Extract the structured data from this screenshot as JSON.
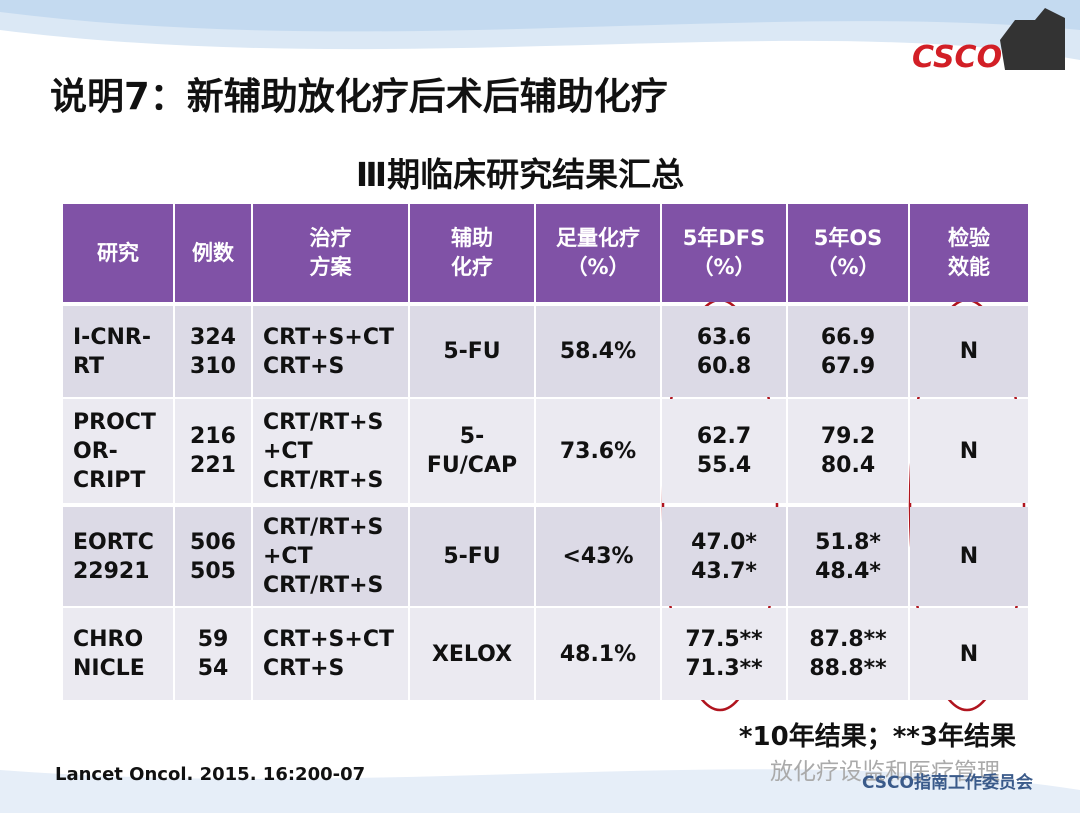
{
  "header": {
    "title": "说明7：新辅助放化疗后术后辅助化疗",
    "logo": "CSCO"
  },
  "subtitle": "Ⅲ期临床研究结果汇总",
  "table": {
    "header": [
      [
        "研究"
      ],
      [
        "例数"
      ],
      [
        "治疗",
        "方案"
      ],
      [
        "辅助",
        "化疗"
      ],
      [
        "足量化疗",
        "（%）"
      ],
      [
        "5年DFS",
        "（%）"
      ],
      [
        "5年OS",
        "（%）"
      ],
      [
        "检验",
        "效能"
      ]
    ],
    "rows": [
      [
        [
          "I-CNR-",
          "RT"
        ],
        [
          "324",
          "310"
        ],
        [
          "CRT+S+CT",
          "CRT+S"
        ],
        [
          "5-FU"
        ],
        [
          "58.4%"
        ],
        [
          "63.6",
          "60.8"
        ],
        [
          "66.9",
          "67.9"
        ],
        [
          "N"
        ]
      ],
      [
        [
          "PROCT",
          "OR-",
          "CRIPT"
        ],
        [
          "216",
          "221"
        ],
        [
          "CRT/RT+S",
          "+CT",
          "CRT/RT+S"
        ],
        [
          "5-",
          "FU/CAP"
        ],
        [
          "73.6%"
        ],
        [
          "62.7",
          "55.4"
        ],
        [
          "79.2",
          "80.4"
        ],
        [
          "N"
        ]
      ],
      [
        [
          "EORTC",
          "22921"
        ],
        [
          "506",
          "505"
        ],
        [
          "CRT/RT+S",
          "+CT",
          "CRT/RT+S"
        ],
        [
          "5-FU"
        ],
        [
          "<43%"
        ],
        [
          "47.0*",
          "43.7*"
        ],
        [
          "51.8*",
          "48.4*"
        ],
        [
          "N"
        ]
      ],
      [
        [
          "CHRO",
          "NICLE"
        ],
        [
          "59",
          "54"
        ],
        [
          "CRT+S+CT",
          "CRT+S"
        ],
        [
          "XELOX"
        ],
        [
          "48.1%"
        ],
        [
          "77.5**",
          "71.3**"
        ],
        [
          "87.8**",
          "88.8**"
        ],
        [
          "N"
        ]
      ]
    ]
  },
  "footnote": "*10年结果；**3年结果",
  "citation": "Lancet Oncol. 2015. 16:200-07",
  "watermark": "放化疗设监和医疗管理",
  "committee": "CSCO指南工作委员会"
}
